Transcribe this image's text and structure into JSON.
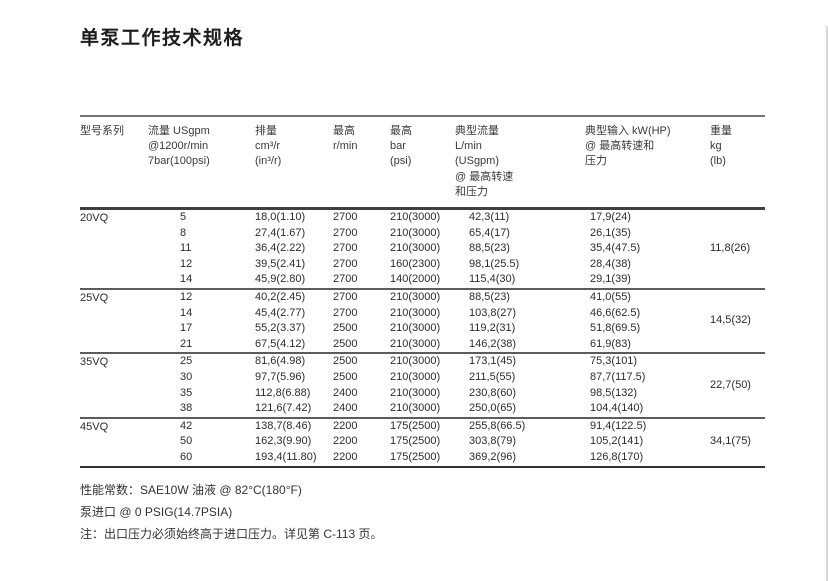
{
  "page": {
    "title": "单泵工作技术规格"
  },
  "table": {
    "headers": [
      {
        "lines": [
          "型号系列"
        ]
      },
      {
        "lines": [
          "流量 USgpm",
          "@1200r/min",
          "7bar(100psi)"
        ]
      },
      {
        "lines": [
          "排量",
          "cm³/r",
          "(in³/r)"
        ]
      },
      {
        "lines": [
          "最高",
          "r/min"
        ]
      },
      {
        "lines": [
          "最高",
          "bar",
          "(psi)"
        ]
      },
      {
        "lines": [
          "典型流量",
          "L/min",
          "(USgpm)",
          "@ 最高转速",
          "和压力"
        ]
      },
      {
        "lines": [
          "典型输入 kW(HP)",
          "@ 最高转速和",
          "压力"
        ]
      },
      {
        "lines": [
          "重量",
          "kg",
          "(lb)"
        ]
      }
    ],
    "sections": [
      {
        "model": "20VQ",
        "weight": "11,8(26)",
        "rows": [
          [
            "5",
            "18,0(1.10)",
            "2700",
            "210(3000)",
            "42,3(11)",
            "17,9(24)"
          ],
          [
            "8",
            "27,4(1.67)",
            "2700",
            "210(3000)",
            "65,4(17)",
            "26,1(35)"
          ],
          [
            "11",
            "36,4(2.22)",
            "2700",
            "210(3000)",
            "88,5(23)",
            "35,4(47.5)"
          ],
          [
            "12",
            "39,5(2.41)",
            "2700",
            "160(2300)",
            "98,1(25.5)",
            "28,4(38)"
          ],
          [
            "14",
            "45,9(2.80)",
            "2700",
            "140(2000)",
            "115,4(30)",
            "29,1(39)"
          ]
        ]
      },
      {
        "model": "25VQ",
        "weight": "14,5(32)",
        "rows": [
          [
            "12",
            "40,2(2.45)",
            "2700",
            "210(3000)",
            "88,5(23)",
            "41,0(55)"
          ],
          [
            "14",
            "45,4(2.77)",
            "2700",
            "210(3000)",
            "103,8(27)",
            "46,6(62.5)"
          ],
          [
            "17",
            "55,2(3.37)",
            "2500",
            "210(3000)",
            "119,2(31)",
            "51,8(69.5)"
          ],
          [
            "21",
            "67,5(4.12)",
            "2500",
            "210(3000)",
            "146,2(38)",
            "61,9(83)"
          ]
        ]
      },
      {
        "model": "35VQ",
        "weight": "22,7(50)",
        "rows": [
          [
            "25",
            "81,6(4.98)",
            "2500",
            "210(3000)",
            "173,1(45)",
            "75,3(101)"
          ],
          [
            "30",
            "97,7(5.96)",
            "2500",
            "210(3000)",
            "211,5(55)",
            "87,7(117.5)"
          ],
          [
            "35",
            "112,8(6.88)",
            "2400",
            "210(3000)",
            "230,8(60)",
            "98,5(132)"
          ],
          [
            "38",
            "121,6(7.42)",
            "2400",
            "210(3000)",
            "250,0(65)",
            "104,4(140)"
          ]
        ]
      },
      {
        "model": "45VQ",
        "weight": "34,1(75)",
        "rows": [
          [
            "42",
            "138,7(8.46)",
            "2200",
            "175(2500)",
            "255,8(66.5)",
            "91,4(122.5)"
          ],
          [
            "50",
            "162,3(9.90)",
            "2200",
            "175(2500)",
            "303,8(79)",
            "105,2(141)"
          ],
          [
            "60",
            "193,4(11.80)",
            "2200",
            "175(2500)",
            "369,2(96)",
            "126,8(170)"
          ]
        ]
      }
    ]
  },
  "notes": {
    "line1": "性能常数：SAE10W 油液 @ 82°C(180°F)",
    "line2": "泵进口 @ 0 PSIG(14.7PSIA)",
    "line3": "注：出口压力必须始终高于进口压力。详见第 C-113 页。"
  }
}
